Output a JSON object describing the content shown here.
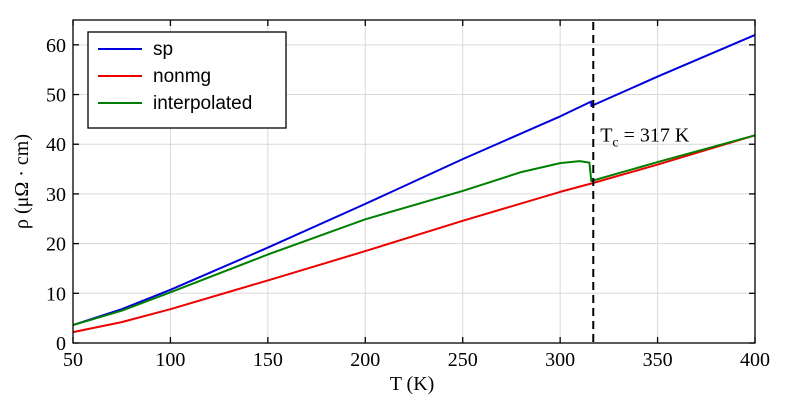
{
  "chart_data": {
    "type": "line",
    "title": "",
    "xlabel": "T (K)",
    "ylabel": "ρ (μΩ · cm)",
    "xlim": [
      50,
      400
    ],
    "ylim": [
      0,
      65
    ],
    "xticks": [
      50,
      100,
      150,
      200,
      250,
      300,
      350,
      400
    ],
    "yticks": [
      0,
      10,
      20,
      30,
      40,
      50,
      60
    ],
    "grid": true,
    "legend_position": "top-left",
    "series": [
      {
        "name": "sp",
        "color": "#0000dd",
        "points": [
          [
            50,
            3.6
          ],
          [
            75,
            6.8
          ],
          [
            100,
            10.7
          ],
          [
            150,
            19.2
          ],
          [
            200,
            28.0
          ],
          [
            250,
            37.0
          ],
          [
            300,
            45.6
          ],
          [
            316,
            48.6
          ],
          [
            316,
            47.7
          ],
          [
            350,
            53.6
          ],
          [
            400,
            62.0
          ]
        ]
      },
      {
        "name": "nonmg",
        "color": "#ee0000",
        "points": [
          [
            50,
            2.2
          ],
          [
            75,
            4.2
          ],
          [
            100,
            6.8
          ],
          [
            150,
            12.6
          ],
          [
            200,
            18.5
          ],
          [
            250,
            24.6
          ],
          [
            300,
            30.4
          ],
          [
            316,
            32.1
          ],
          [
            350,
            35.9
          ],
          [
            400,
            41.8
          ]
        ]
      },
      {
        "name": "interpolated",
        "color": "#008000",
        "points": [
          [
            50,
            3.6
          ],
          [
            75,
            6.5
          ],
          [
            100,
            10.2
          ],
          [
            150,
            17.8
          ],
          [
            200,
            24.9
          ],
          [
            250,
            30.6
          ],
          [
            280,
            34.4
          ],
          [
            300,
            36.2
          ],
          [
            310,
            36.6
          ],
          [
            315,
            36.3
          ],
          [
            316,
            32.6
          ],
          [
            350,
            36.4
          ],
          [
            400,
            41.8
          ]
        ]
      }
    ],
    "vline": {
      "x": 317,
      "style": "dashed",
      "color": "#000000"
    },
    "annotation": {
      "main": "T",
      "sub": "c",
      "rest": " = 317 K",
      "x": 318,
      "y": 40.5
    }
  }
}
